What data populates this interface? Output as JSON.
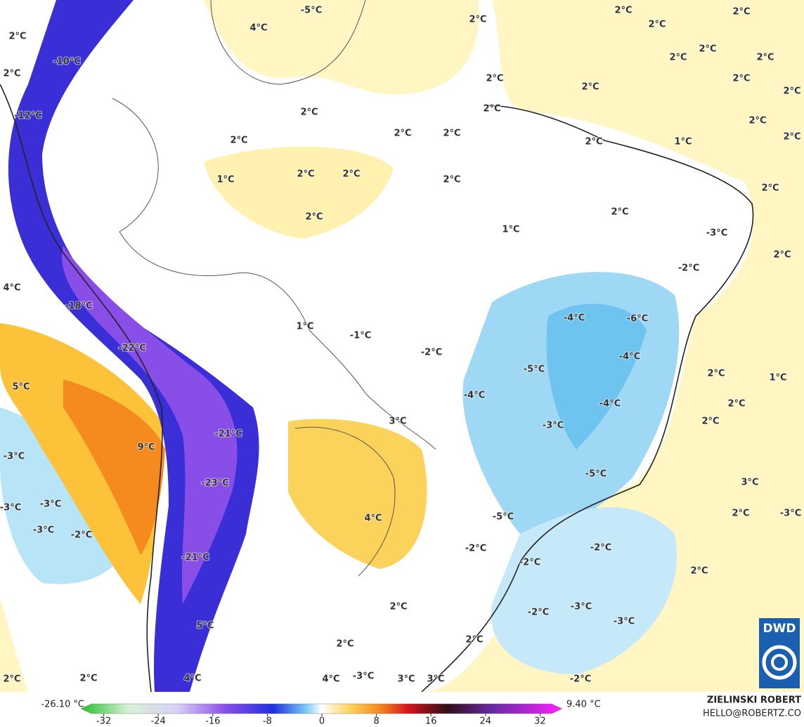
{
  "labels": [
    "-5°C",
    "4°C",
    "-10°C",
    "-12°C",
    "2°C",
    "2°C",
    "2°C",
    "2°C",
    "2°C",
    "2°C",
    "2°C",
    "2°C",
    "2°C",
    "2°C",
    "2°C",
    "2°C",
    "2°C",
    "2°C",
    "1°C",
    "2°C",
    "2°C",
    "2°C",
    "2°C",
    "2°C",
    "2°C",
    "2°C",
    "1°C",
    "2°C",
    "2°C",
    "2°C",
    "2°C",
    "2°C",
    "2°C",
    "1°C",
    "-3°C",
    "2°C",
    "-2°C",
    "4°C",
    "-18°C",
    "-4°C",
    "-6°C",
    "1°C",
    "-1°C",
    "-2°C",
    "-22°C",
    "-4°C",
    "-5°C",
    "2°C",
    "1°C",
    "5°C",
    "-4°C",
    "2°C",
    "-4°C",
    "3°C",
    "-3°C",
    "2°C",
    "-21°C",
    "9°C",
    "-3°C",
    "-5°C",
    "-23°C",
    "3°C",
    "-3°C",
    "-3°C",
    "2°C",
    "-3°C",
    "4°C",
    "-5°C",
    "-3°C",
    "-2°C",
    "-21°C",
    "-2°C",
    "-2°C",
    "-2°C",
    "2°C",
    "2°C",
    "-3°C",
    "-2°C",
    "-3°C",
    "5°C",
    "2°C",
    "2°C",
    "2°C",
    "2°C",
    "4°C",
    "4°C",
    "-3°C",
    "3°C",
    "3°C",
    "-2°C"
  ],
  "colorbar": {
    "ticks": [
      -32,
      -24,
      -16,
      -8,
      0,
      8,
      16,
      24,
      32
    ],
    "min_label": "-26.10 °C",
    "max_label": "9.40 °C"
  },
  "credit": {
    "name": "ZIELINSKI ROBERT",
    "contact": "HELLO@ROBERTZ.CO",
    "logo": "DWD"
  }
}
